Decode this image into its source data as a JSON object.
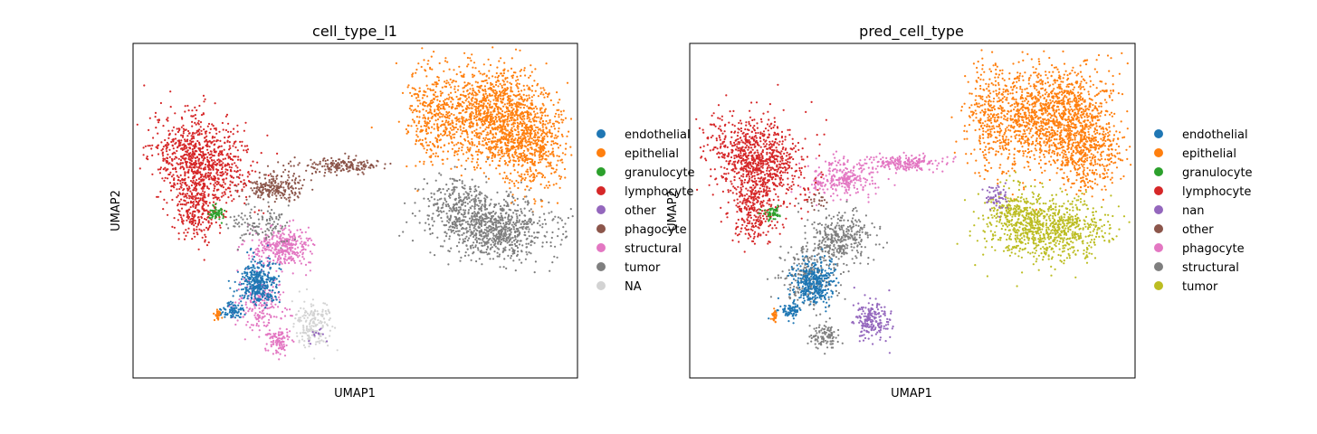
{
  "chart_data": [
    {
      "type": "scatter",
      "title": "cell_type_l1",
      "xlabel": "UMAP1",
      "ylabel": "UMAP2",
      "grid": false,
      "ticks": false,
      "legend_position": "right",
      "legend": [
        {
          "label": "endothelial",
          "color": "#1f77b4"
        },
        {
          "label": "epithelial",
          "color": "#ff7f0e"
        },
        {
          "label": "granulocyte",
          "color": "#2ca02c"
        },
        {
          "label": "lymphocyte",
          "color": "#d62728"
        },
        {
          "label": "other",
          "color": "#9467bd"
        },
        {
          "label": "phagocyte",
          "color": "#8c564b"
        },
        {
          "label": "structural",
          "color": "#e377c2"
        },
        {
          "label": "tumor",
          "color": "#7f7f7f"
        },
        {
          "label": "NA",
          "color": "#d3d3d3"
        }
      ]
    },
    {
      "type": "scatter",
      "title": "pred_cell_type",
      "xlabel": "UMAP1",
      "ylabel": "UMAP2",
      "grid": false,
      "ticks": false,
      "legend_position": "right",
      "legend": [
        {
          "label": "endothelial",
          "color": "#1f77b4"
        },
        {
          "label": "epithelial",
          "color": "#ff7f0e"
        },
        {
          "label": "granulocyte",
          "color": "#2ca02c"
        },
        {
          "label": "lymphocyte",
          "color": "#d62728"
        },
        {
          "label": "nan",
          "color": "#9467bd"
        },
        {
          "label": "other",
          "color": "#8c564b"
        },
        {
          "label": "phagocyte",
          "color": "#e377c2"
        },
        {
          "label": "structural",
          "color": "#7f7f7f"
        },
        {
          "label": "tumor",
          "color": "#bcbd22"
        }
      ]
    }
  ]
}
